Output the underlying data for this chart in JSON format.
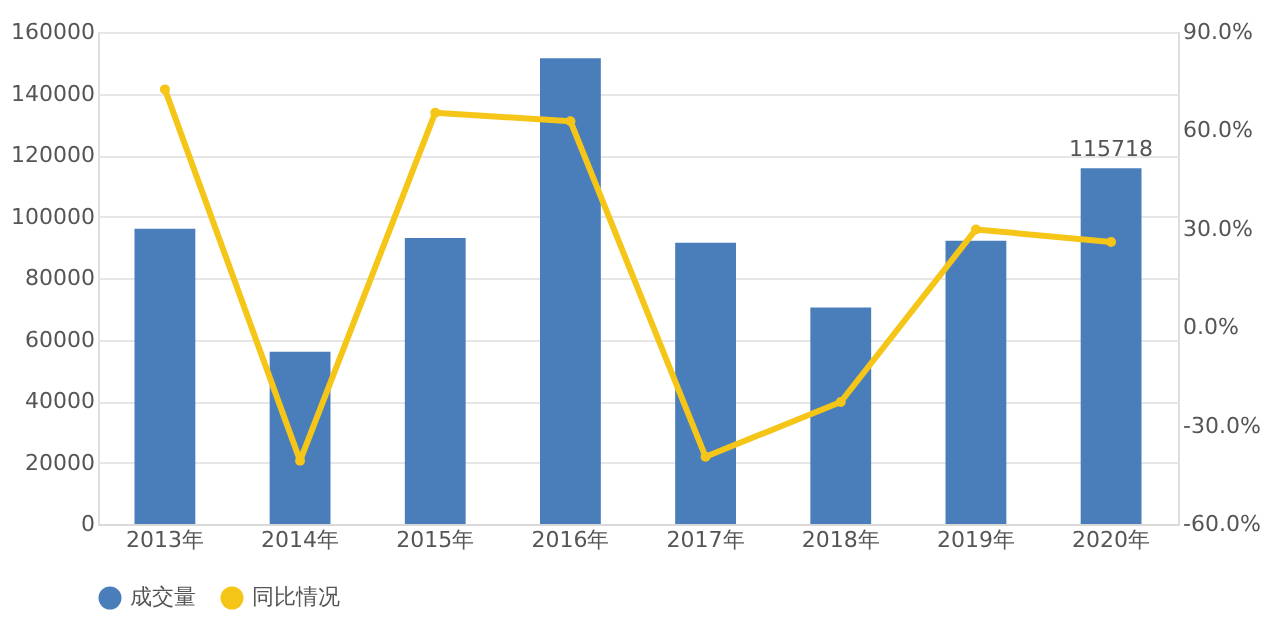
{
  "chart_data": {
    "type": "bar",
    "categories": [
      "2013年",
      "2014年",
      "2015年",
      "2016年",
      "2017年",
      "2018年",
      "2019年",
      "2020年"
    ],
    "series": [
      {
        "name": "成交量",
        "color": "#4a7ebb",
        "values": [
          96000,
          56000,
          93000,
          151500,
          91500,
          70400,
          92100,
          115718
        ],
        "value_labels": [
          null,
          null,
          null,
          null,
          null,
          null,
          null,
          "115718"
        ]
      },
      {
        "name": "同比情况",
        "type": "line",
        "axis": "y2",
        "color": "#f5c518",
        "values": [
          72.5,
          -40.7,
          65.4,
          62.8,
          -39.5,
          -22.8,
          29.8,
          26.0
        ]
      }
    ],
    "ylim": [
      0,
      160000
    ],
    "yticks": [
      0,
      20000,
      40000,
      60000,
      80000,
      100000,
      120000,
      140000,
      160000
    ],
    "y2lim": [
      -60,
      90
    ],
    "y2ticks": [
      {
        "value": -60,
        "label": "-60.0%"
      },
      {
        "value": -30,
        "label": "-30.0%"
      },
      {
        "value": 0,
        "label": "0.0%"
      },
      {
        "value": 30,
        "label": "30.0%"
      },
      {
        "value": 60,
        "label": "60.0%"
      },
      {
        "value": 90,
        "label": "90.0%"
      }
    ],
    "grid": "y",
    "legend": "bottom",
    "marker": "circle",
    "line_style": "solid"
  }
}
